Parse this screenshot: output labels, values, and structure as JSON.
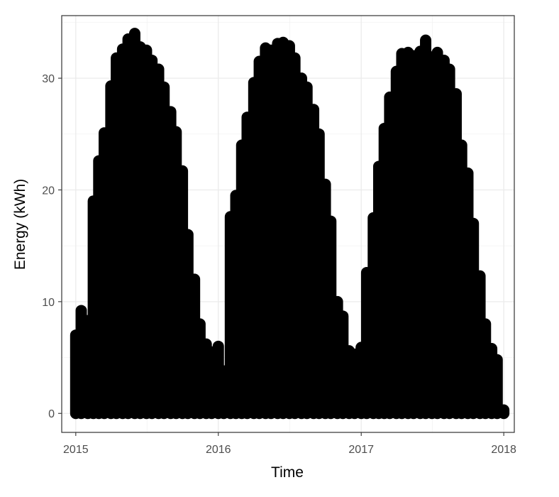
{
  "chart_data": {
    "type": "scatter",
    "title": "",
    "xlabel": "Time",
    "ylabel": "Energy (kWh)",
    "x_axis": {
      "kind": "date",
      "range": [
        "2014-11-26",
        "2018-01-28"
      ],
      "ticks": [
        {
          "value": "2015-01-01",
          "label": "2015"
        },
        {
          "value": "2016-01-01",
          "label": "2016"
        },
        {
          "value": "2017-01-01",
          "label": "2017"
        },
        {
          "value": "2018-01-01",
          "label": "2018"
        }
      ]
    },
    "y_axis": {
      "range": [
        -1.7,
        35.6
      ],
      "ticks": [
        {
          "value": 0,
          "label": "0"
        },
        {
          "value": 10,
          "label": "10"
        },
        {
          "value": 20,
          "label": "20"
        },
        {
          "value": 30,
          "label": "30"
        }
      ]
    },
    "grid": true,
    "legend": "none",
    "point_color": "#000000",
    "series": [
      {
        "points": [
          {
            "x": "2015-01-01",
            "y": 7.0
          },
          {
            "x": "2015-01-15",
            "y": 9.2
          },
          {
            "x": "2015-02-01",
            "y": 8.3
          },
          {
            "x": "2015-02-15",
            "y": 19.0
          },
          {
            "x": "2015-03-01",
            "y": 22.6
          },
          {
            "x": "2015-03-15",
            "y": 25.1
          },
          {
            "x": "2015-04-01",
            "y": 29.3
          },
          {
            "x": "2015-04-15",
            "y": 31.8
          },
          {
            "x": "2015-05-01",
            "y": 32.6
          },
          {
            "x": "2015-05-15",
            "y": 33.5
          },
          {
            "x": "2015-06-01",
            "y": 34.0
          },
          {
            "x": "2015-06-15",
            "y": 32.8
          },
          {
            "x": "2015-07-01",
            "y": 32.5
          },
          {
            "x": "2015-07-15",
            "y": 31.6
          },
          {
            "x": "2015-08-01",
            "y": 30.8
          },
          {
            "x": "2015-08-15",
            "y": 29.2
          },
          {
            "x": "2015-09-01",
            "y": 27.0
          },
          {
            "x": "2015-09-15",
            "y": 25.2
          },
          {
            "x": "2015-10-01",
            "y": 21.7
          },
          {
            "x": "2015-10-15",
            "y": 16.0
          },
          {
            "x": "2015-11-01",
            "y": 12.0
          },
          {
            "x": "2015-11-15",
            "y": 8.0
          },
          {
            "x": "2015-12-01",
            "y": 6.2
          },
          {
            "x": "2015-12-15",
            "y": 5.5
          },
          {
            "x": "2016-01-01",
            "y": 6.0
          },
          {
            "x": "2016-01-15",
            "y": 3.8
          },
          {
            "x": "2016-02-01",
            "y": 17.6
          },
          {
            "x": "2016-02-15",
            "y": 19.5
          },
          {
            "x": "2016-03-01",
            "y": 24.0
          },
          {
            "x": "2016-03-15",
            "y": 26.5
          },
          {
            "x": "2016-04-01",
            "y": 29.6
          },
          {
            "x": "2016-04-15",
            "y": 31.5
          },
          {
            "x": "2016-05-01",
            "y": 32.7
          },
          {
            "x": "2016-05-15",
            "y": 32.5
          },
          {
            "x": "2016-06-01",
            "y": 33.1
          },
          {
            "x": "2016-06-15",
            "y": 33.2
          },
          {
            "x": "2016-07-01",
            "y": 32.9
          },
          {
            "x": "2016-07-15",
            "y": 31.8
          },
          {
            "x": "2016-08-01",
            "y": 30.0
          },
          {
            "x": "2016-08-15",
            "y": 29.2
          },
          {
            "x": "2016-09-01",
            "y": 27.2
          },
          {
            "x": "2016-09-15",
            "y": 25.0
          },
          {
            "x": "2016-10-01",
            "y": 20.5
          },
          {
            "x": "2016-10-15",
            "y": 17.2
          },
          {
            "x": "2016-11-01",
            "y": 10.0
          },
          {
            "x": "2016-11-15",
            "y": 8.7
          },
          {
            "x": "2016-12-01",
            "y": 5.6
          },
          {
            "x": "2016-12-15",
            "y": 5.3
          },
          {
            "x": "2017-01-01",
            "y": 5.9
          },
          {
            "x": "2017-01-15",
            "y": 12.6
          },
          {
            "x": "2017-02-01",
            "y": 17.5
          },
          {
            "x": "2017-02-15",
            "y": 22.1
          },
          {
            "x": "2017-03-01",
            "y": 25.5
          },
          {
            "x": "2017-03-15",
            "y": 28.3
          },
          {
            "x": "2017-04-01",
            "y": 30.6
          },
          {
            "x": "2017-04-15",
            "y": 32.2
          },
          {
            "x": "2017-05-01",
            "y": 32.3
          },
          {
            "x": "2017-05-15",
            "y": 32.0
          },
          {
            "x": "2017-06-01",
            "y": 32.4
          },
          {
            "x": "2017-06-15",
            "y": 33.4
          },
          {
            "x": "2017-07-01",
            "y": 31.9
          },
          {
            "x": "2017-07-15",
            "y": 32.3
          },
          {
            "x": "2017-08-01",
            "y": 31.6
          },
          {
            "x": "2017-08-15",
            "y": 30.8
          },
          {
            "x": "2017-09-01",
            "y": 28.6
          },
          {
            "x": "2017-09-15",
            "y": 24.0
          },
          {
            "x": "2017-10-01",
            "y": 21.5
          },
          {
            "x": "2017-10-15",
            "y": 17.0
          },
          {
            "x": "2017-11-01",
            "y": 12.3
          },
          {
            "x": "2017-11-15",
            "y": 8.0
          },
          {
            "x": "2017-12-01",
            "y": 5.8
          },
          {
            "x": "2017-12-15",
            "y": 4.8
          },
          {
            "x": "2018-01-01",
            "y": 0.3
          }
        ]
      }
    ]
  }
}
